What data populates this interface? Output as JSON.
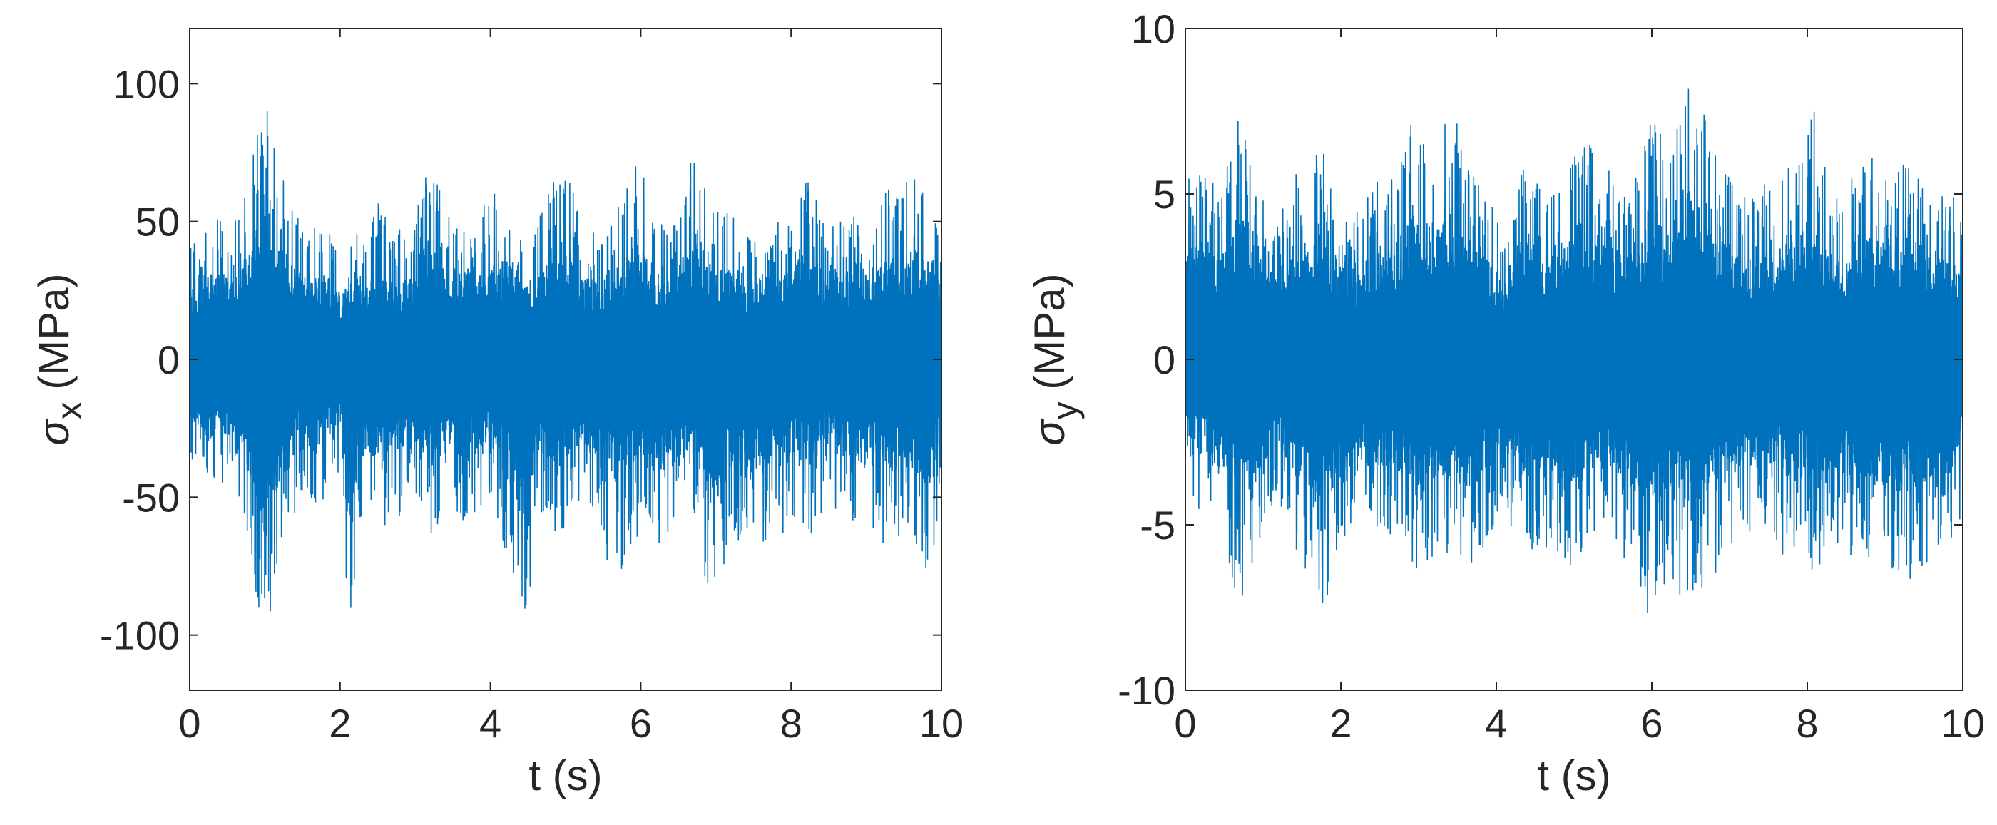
{
  "chart_data": [
    {
      "type": "line",
      "title": "",
      "xlabel": "t (s)",
      "ylabel": {
        "symbol": "σ",
        "subscript": "x",
        "unit": " (MPa)"
      },
      "xlim": [
        0,
        10
      ],
      "ylim": [
        -120,
        120
      ],
      "xticks": [
        0,
        2,
        4,
        6,
        8,
        10
      ],
      "xtick_labels": [
        "0",
        "2",
        "4",
        "6",
        "8",
        "10"
      ],
      "yticks": [
        -100,
        -50,
        0,
        50,
        100
      ],
      "ytick_labels": [
        "-100",
        "-50",
        "0",
        "50",
        "100"
      ],
      "grid": false,
      "legend": "none",
      "series": [
        {
          "color": "#0072BD",
          "envelope_t": [
            0,
            0.3,
            0.6,
            0.85,
            1.0,
            1.2,
            1.5,
            1.7,
            2.0,
            2.1,
            2.3,
            2.5,
            2.7,
            3.0,
            3.15,
            3.4,
            3.7,
            3.95,
            4.2,
            4.45,
            4.7,
            5.0,
            5.2,
            5.5,
            5.75,
            6.0,
            6.25,
            6.5,
            6.75,
            6.9,
            7.2,
            7.45,
            7.75,
            8.0,
            8.3,
            8.45,
            8.7,
            9.0,
            9.3,
            9.6,
            9.85,
            10.0
          ],
          "envelope_max": [
            42,
            52,
            50,
            76,
            97,
            70,
            47,
            58,
            40,
            48,
            44,
            58,
            48,
            50,
            74,
            58,
            55,
            60,
            62,
            46,
            55,
            79,
            50,
            48,
            58,
            76,
            48,
            58,
            79,
            58,
            54,
            48,
            52,
            58,
            72,
            48,
            54,
            52,
            63,
            66,
            65,
            40
          ],
          "envelope_min": [
            -35,
            -50,
            -45,
            -80,
            -105,
            -75,
            -48,
            -58,
            -40,
            -105,
            -58,
            -62,
            -60,
            -50,
            -70,
            -55,
            -62,
            -52,
            -72,
            -94,
            -58,
            -68,
            -50,
            -72,
            -78,
            -62,
            -70,
            -62,
            -58,
            -94,
            -68,
            -65,
            -70,
            -58,
            -65,
            -52,
            -60,
            -58,
            -70,
            -64,
            -82,
            -45
          ]
        }
      ]
    },
    {
      "type": "line",
      "title": "",
      "xlabel": "t (s)",
      "ylabel": {
        "symbol": "σ",
        "subscript": "y",
        "unit": " (MPa)"
      },
      "xlim": [
        0,
        10
      ],
      "ylim": [
        -10,
        10
      ],
      "xticks": [
        0,
        2,
        4,
        6,
        8,
        10
      ],
      "xtick_labels": [
        "0",
        "2",
        "4",
        "6",
        "8",
        "10"
      ],
      "yticks": [
        -10,
        -5,
        0,
        5,
        10
      ],
      "ytick_labels": [
        "-10",
        "-5",
        "0",
        "5",
        "10"
      ],
      "grid": false,
      "legend": "none",
      "series": [
        {
          "color": "#0072BD",
          "envelope_t": [
            0,
            0.2,
            0.45,
            0.7,
            0.95,
            1.2,
            1.45,
            1.7,
            1.95,
            2.2,
            2.45,
            2.7,
            2.95,
            3.15,
            3.4,
            3.65,
            3.9,
            4.1,
            4.35,
            4.6,
            4.85,
            5.1,
            5.35,
            5.6,
            5.85,
            6.0,
            6.2,
            6.45,
            6.7,
            6.95,
            7.2,
            7.45,
            7.7,
            7.95,
            8.05,
            8.3,
            8.55,
            8.8,
            9.1,
            9.35,
            9.6,
            9.85,
            10.0
          ],
          "envelope_max": [
            5.5,
            6.0,
            5.0,
            7.6,
            5.0,
            4.5,
            6.0,
            7.0,
            5.0,
            4.5,
            5.5,
            5.5,
            8.2,
            6.0,
            7.8,
            6.2,
            5.0,
            4.2,
            6.5,
            5.0,
            5.5,
            7.0,
            6.0,
            5.5,
            6.0,
            8.5,
            5.5,
            8.6,
            7.5,
            6.0,
            5.0,
            5.5,
            6.0,
            6.2,
            8.4,
            5.0,
            5.5,
            6.2,
            5.8,
            6.2,
            5.0,
            5.5,
            4.0
          ],
          "envelope_min": [
            -4.0,
            -5.0,
            -5.0,
            -7.6,
            -5.5,
            -4.5,
            -6.0,
            -7.8,
            -6.5,
            -4.5,
            -6.0,
            -5.5,
            -7.0,
            -6.5,
            -6.0,
            -6.8,
            -5.5,
            -4.5,
            -6.0,
            -5.5,
            -6.8,
            -6.0,
            -5.5,
            -6.0,
            -7.0,
            -8.2,
            -6.5,
            -7.5,
            -7.0,
            -6.5,
            -5.5,
            -5.0,
            -6.0,
            -5.5,
            -7.2,
            -5.5,
            -6.0,
            -6.0,
            -6.5,
            -6.8,
            -6.0,
            -6.0,
            -4.5
          ]
        }
      ]
    }
  ]
}
